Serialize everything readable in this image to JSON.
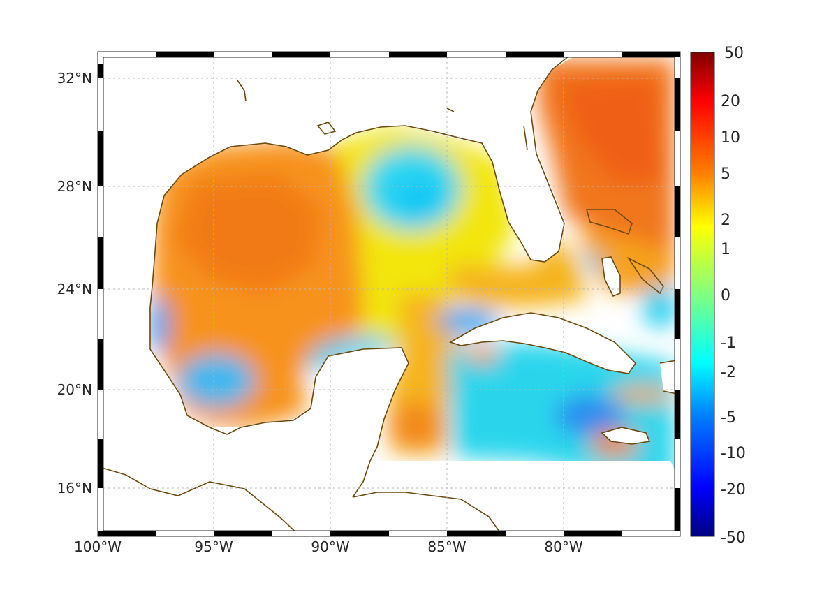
{
  "chart_data": {
    "type": "heatmap",
    "title": "",
    "xlabel": "",
    "ylabel": "",
    "projection": "mercator",
    "lon_range": [
      -100,
      -75
    ],
    "lat_range": [
      14.2,
      33
    ],
    "x_tick_labels": [
      "100°W",
      "95°W",
      "90°W",
      "85°W",
      "80°W"
    ],
    "y_tick_labels": [
      "16°N",
      "20°N",
      "24°N",
      "28°N",
      "32°N"
    ],
    "grid": true,
    "frame": "black-and-white checkered border",
    "colormap": "jet",
    "colorbar": {
      "position": "right",
      "tick_labels": [
        "50",
        "20",
        "10",
        "5",
        "2",
        "1",
        "0",
        "-1",
        "-2",
        "-5",
        "-10",
        "-20",
        "-50"
      ],
      "min": -50,
      "max": 50,
      "scale": "nonlinear (symmetric log-like)"
    },
    "coastline_color": "#6b4a10",
    "field_regions": [
      {
        "region": "western Gulf of Mexico",
        "value": 5
      },
      {
        "region": "central Gulf, south of Mississippi delta",
        "value": -2
      },
      {
        "region": "Campeche Bank / north of Yucatan",
        "value": -1.5
      },
      {
        "region": "southwestern Bay of Campeche",
        "value": -2
      },
      {
        "region": "eastern Gulf / Florida Straits",
        "value": 3
      },
      {
        "region": "Atlantic east of Florida",
        "value": 6
      },
      {
        "region": "Caribbean south of Cuba",
        "value": -2
      },
      {
        "region": "Yucatan Channel",
        "value": 3
      }
    ]
  }
}
